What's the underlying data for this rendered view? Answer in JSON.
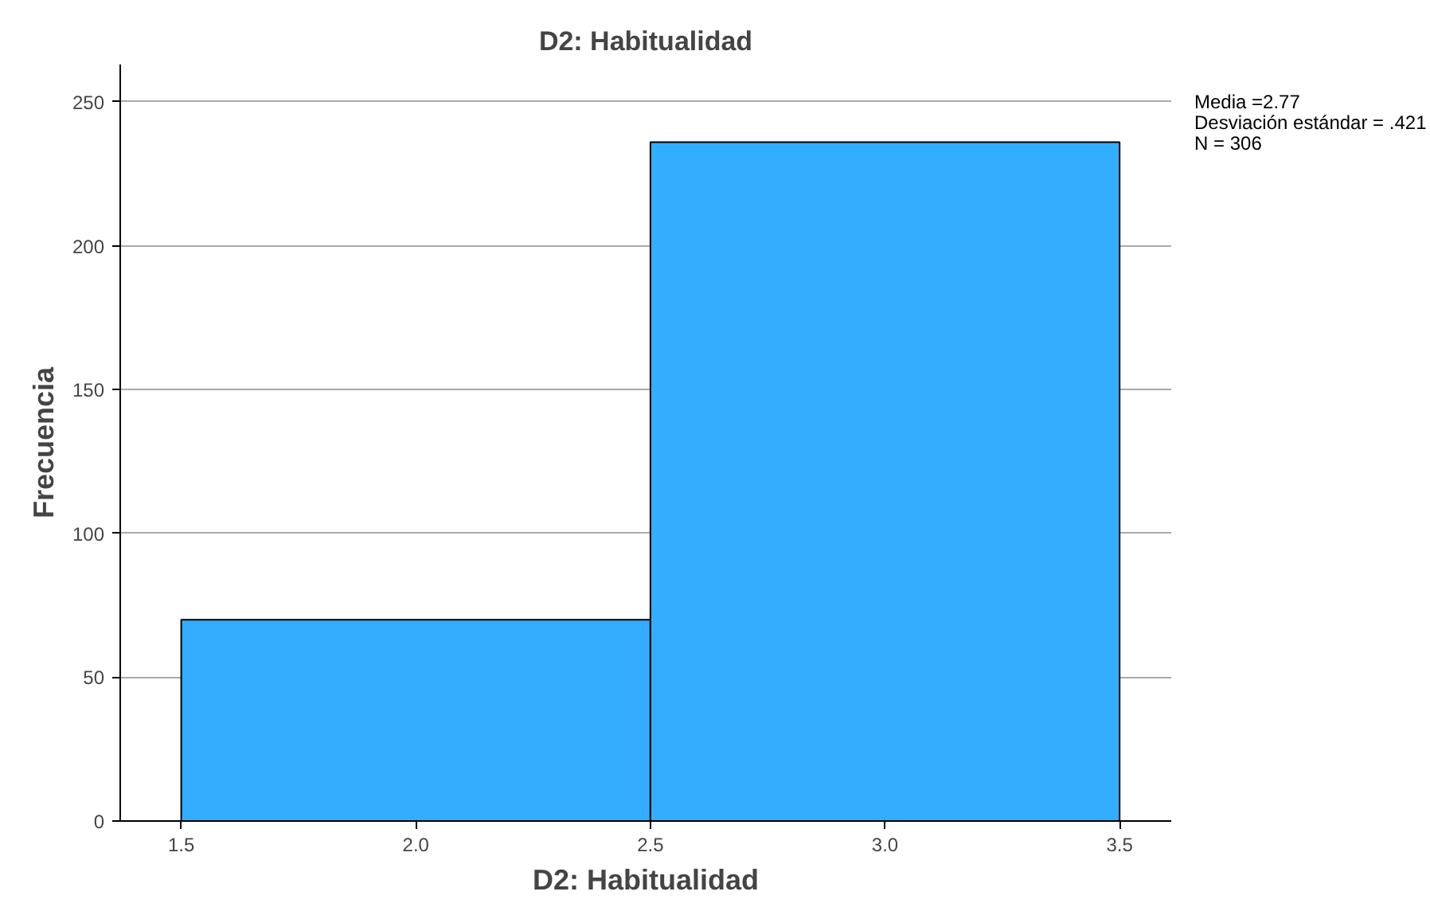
{
  "chart_data": {
    "type": "histogram",
    "title": "D2: Habitualidad",
    "xlabel": "D2: Habitualidad",
    "ylabel": "Frecuencia",
    "bins": [
      1.5,
      2.5,
      3.5
    ],
    "values": [
      70,
      236
    ],
    "color": "#33adff",
    "xlim": [
      1.37,
      3.61
    ],
    "xticks": [
      {
        "value": 1.5,
        "label": "1.5"
      },
      {
        "value": 2.0,
        "label": "2.0"
      },
      {
        "value": 2.5,
        "label": "2.5"
      },
      {
        "value": 3.0,
        "label": "3.0"
      },
      {
        "value": 3.5,
        "label": "3.5"
      }
    ],
    "ylim": [
      0,
      263
    ],
    "yticks": [
      0,
      50,
      100,
      150,
      200,
      250
    ],
    "grid": "y",
    "annotations": [
      "Media =2.77",
      "Desviación estándar = .421",
      "N = 306"
    ]
  }
}
